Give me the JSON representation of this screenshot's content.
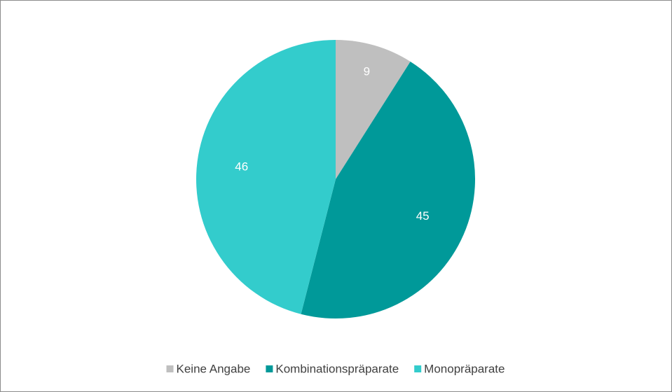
{
  "chart_data": {
    "type": "pie",
    "categories": [
      "Keine Angabe",
      "Kombinationspräparate",
      "Monopräparate"
    ],
    "values": [
      9,
      45,
      46
    ],
    "colors": [
      "#bfbfbf",
      "#009999",
      "#33cccc"
    ],
    "legend": "bottom"
  }
}
